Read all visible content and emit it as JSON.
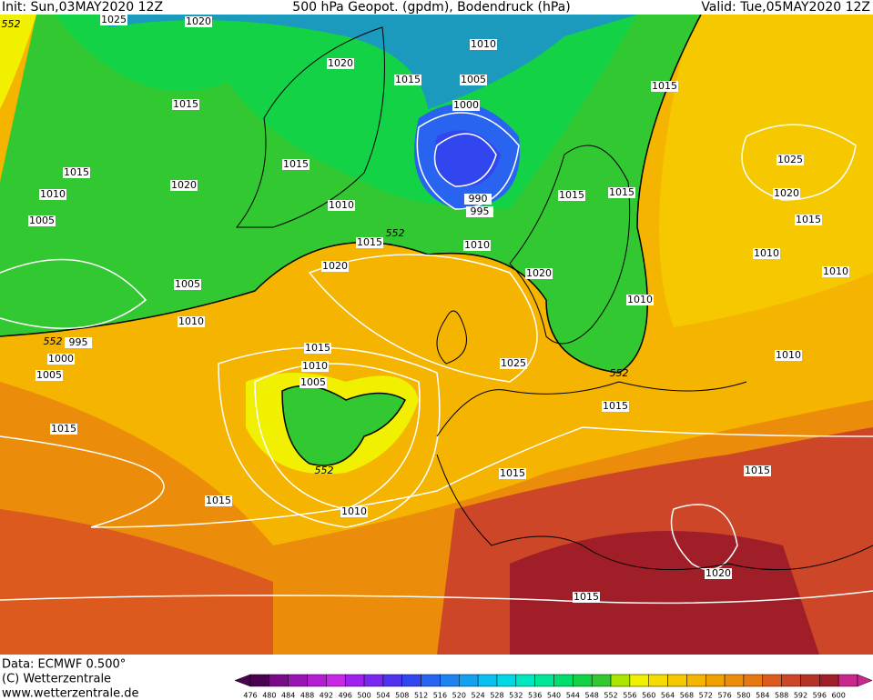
{
  "header": {
    "init": "Init: Sun,03MAY2020 12Z",
    "title": "500 hPa Geopot. (gpdm), Bodendruck (hPa)",
    "valid": "Valid: Tue,05MAY2020 12Z"
  },
  "footer": {
    "data": "Data: ECMWF   0.500°",
    "copyright": "(C) Wetterzentrale",
    "url": "www.wetterzentrale.de"
  },
  "isobar_labels": [
    1025,
    1020,
    1010,
    1020,
    1015,
    1005,
    1000,
    1015,
    1015,
    1015,
    1015,
    1020,
    1010,
    1010,
    990,
    995,
    1015,
    1015,
    1025,
    1020,
    1015,
    1005,
    1015,
    1010,
    1010,
    1020,
    1020,
    1010,
    1005,
    1010,
    1010,
    995,
    1000,
    1015,
    1010,
    1025,
    1005,
    1005,
    1010,
    1015,
    1015,
    1015,
    1015,
    1015,
    1010,
    1020,
    1015
  ],
  "contour_labels": [
    552,
    552,
    552,
    552,
    552
  ],
  "scale": {
    "values": [
      476,
      480,
      484,
      488,
      492,
      496,
      500,
      504,
      508,
      512,
      516,
      520,
      524,
      528,
      532,
      536,
      540,
      544,
      548,
      552,
      556,
      560,
      564,
      568,
      572,
      576,
      580,
      584,
      588,
      592,
      596,
      600
    ],
    "colors": [
      "#4b0050",
      "#7a0a8a",
      "#9a14b4",
      "#b41ed2",
      "#c828e6",
      "#a020f0",
      "#7a28f0",
      "#5032f0",
      "#3246f0",
      "#2864f0",
      "#1e82f0",
      "#14a0f0",
      "#0ac0f0",
      "#00d8e6",
      "#00e6c0",
      "#00e696",
      "#00dc6e",
      "#14d246",
      "#32c832",
      "#aae600",
      "#f0f000",
      "#f5dc00",
      "#f5c800",
      "#f5b400",
      "#f0a000",
      "#eb8c0a",
      "#e67814",
      "#dc5a1e",
      "#cd4628",
      "#b43228",
      "#a01e28",
      "#c8288c"
    ]
  }
}
